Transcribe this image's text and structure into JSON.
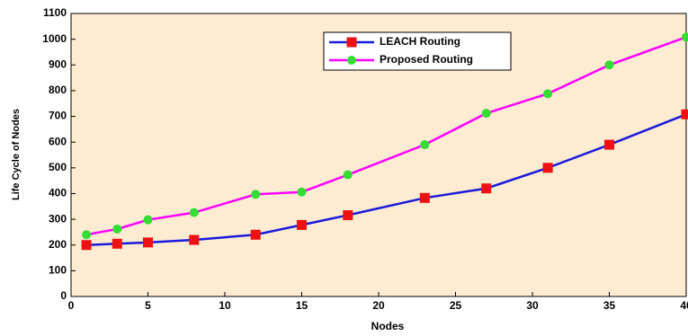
{
  "chart_data": {
    "type": "line",
    "x_label": "Nodes",
    "y_label": "Life Cycle of Nodes",
    "x": [
      1,
      3,
      5,
      8,
      12,
      15,
      18,
      23,
      27,
      31,
      35,
      40
    ],
    "series": [
      {
        "name": "LEACH Routing",
        "color": "#1a1adc",
        "marker": "square",
        "marker_color": "#ee1111",
        "values": [
          200,
          205,
          210,
          220,
          240,
          278,
          316,
          383,
          420,
          500,
          590,
          708
        ]
      },
      {
        "name": "Proposed Routing",
        "color": "#ff00ff",
        "marker": "circle",
        "marker_color": "#33dd33",
        "values": [
          240,
          262,
          298,
          326,
          397,
          406,
          473,
          590,
          712,
          788,
          900,
          1008
        ]
      }
    ],
    "xlim": [
      0,
      40
    ],
    "xticks": [
      0,
      5,
      10,
      15,
      20,
      25,
      30,
      35,
      40
    ],
    "ylim": [
      0,
      1100
    ],
    "yticks": [
      0,
      100,
      200,
      300,
      400,
      500,
      600,
      700,
      800,
      900,
      1000,
      1100
    ],
    "background": "#fdebd2"
  }
}
